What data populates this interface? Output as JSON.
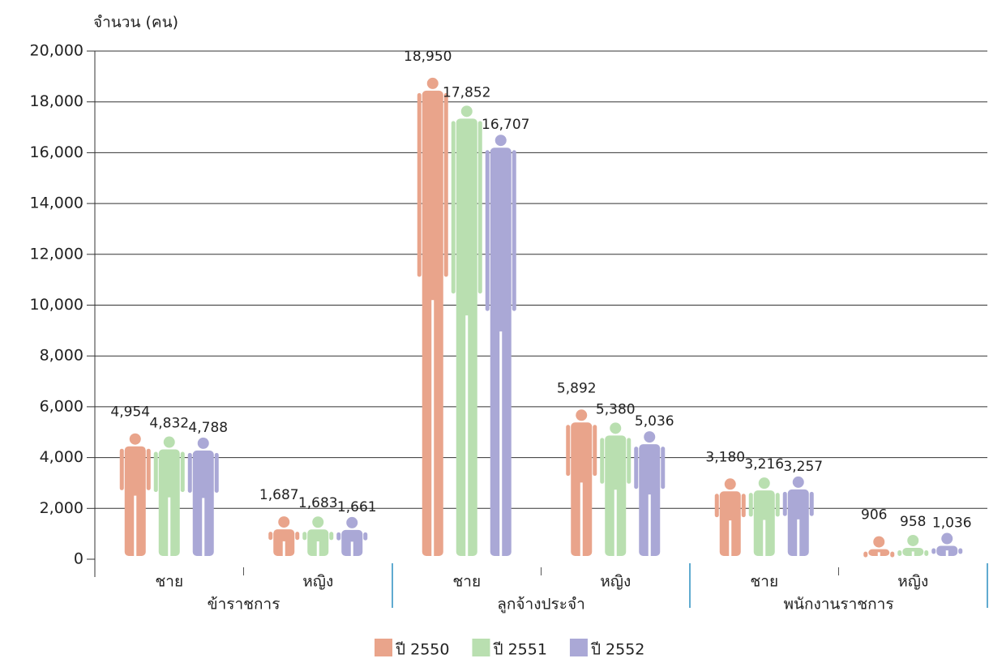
{
  "chart_data": {
    "type": "pictogram-bar",
    "y_label": "จำนวน (คน)",
    "categories": [
      "ชาย",
      "หญิง",
      "ชาย",
      "หญิง",
      "ชาย",
      "หญิง"
    ],
    "groups": [
      "ข้าราชการ",
      "ลูกจ้างประจำ",
      "พนักงานราชการ"
    ],
    "series": [
      {
        "name": "ปี 2550",
        "color": "#e9a48b",
        "values": [
          4954,
          1687,
          18950,
          5892,
          3180,
          906
        ],
        "value_labels": [
          "4,954",
          "1,687",
          "18,950",
          "5,892",
          "3,180",
          "906"
        ]
      },
      {
        "name": "ปี 2551",
        "color": "#b9dfb0",
        "values": [
          4832,
          1683,
          17852,
          5380,
          3216,
          958
        ],
        "value_labels": [
          "4,832",
          "1,683",
          "17,852",
          "5,380",
          "3,216",
          "958"
        ]
      },
      {
        "name": "ปี 2552",
        "color": "#aaa8d6",
        "values": [
          4788,
          1661,
          16707,
          5036,
          3257,
          1036
        ],
        "value_labels": [
          "4,788",
          "1,661",
          "16,707",
          "5,036",
          "3,257",
          "1,036"
        ]
      }
    ],
    "ylim": [
      0,
      20000
    ],
    "yticks": [
      0,
      {
        "value": 2000,
        "label": "2,000"
      },
      {
        "value": 4000,
        "label": "4,000"
      },
      {
        "value": 6000,
        "label": "6,000"
      },
      {
        "value": 8000,
        "label": "8,000"
      },
      {
        "value": 10000,
        "label": "10,000"
      },
      {
        "value": 12000,
        "label": "12,000"
      },
      {
        "value": 14000,
        "label": "14,000"
      },
      {
        "value": 16000,
        "label": "16,000"
      },
      {
        "value": 18000,
        "label": "18,000"
      },
      {
        "value": 20000,
        "label": "20,000"
      }
    ],
    "grid": true
  }
}
